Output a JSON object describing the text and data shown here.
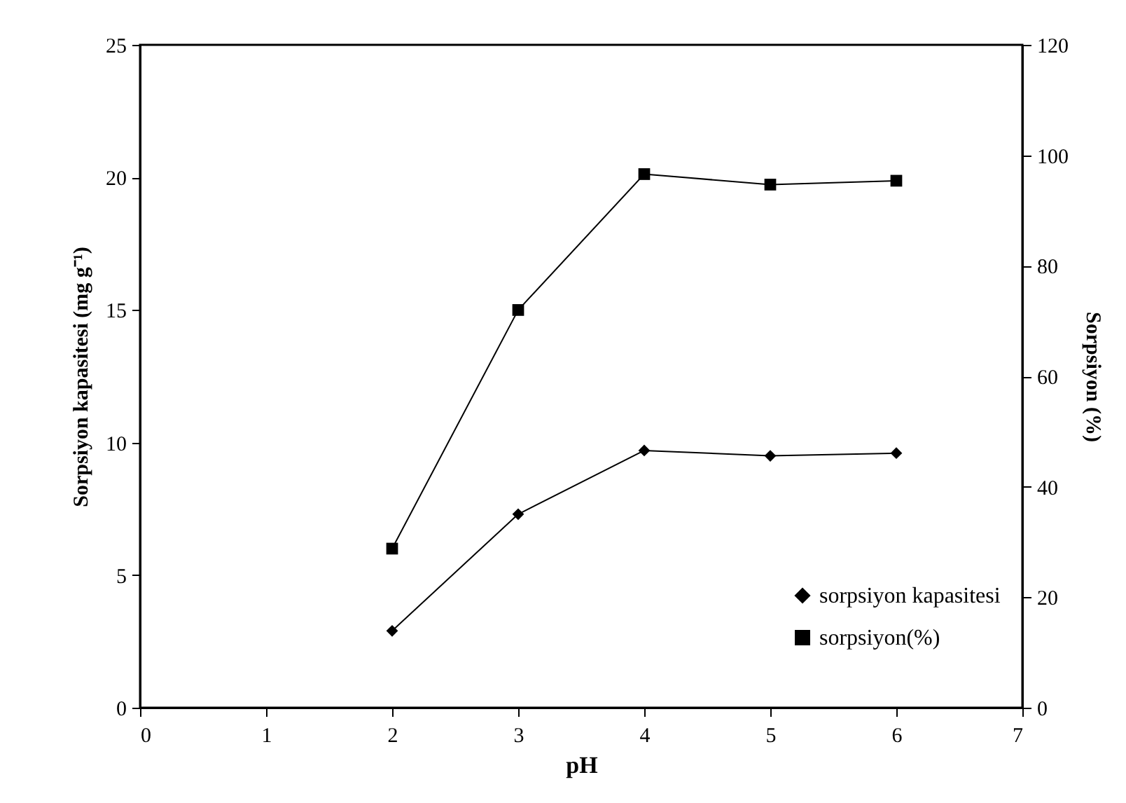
{
  "chart_data": {
    "type": "line",
    "xlabel": "pH",
    "ylabel": "Sorpsiyon kapasitesi (mg g⁻¹)",
    "y2label": "Sorpsiyon (%)",
    "x": [
      2,
      3,
      4,
      5,
      6
    ],
    "series": [
      {
        "name": "sorpsiyon kapasitesi",
        "color": "#000000",
        "marker": "diamond",
        "values": [
          2.9,
          7.3,
          9.7,
          9.5,
          9.6
        ]
      },
      {
        "name": "sorpsiyon(%)",
        "color": "#000000",
        "marker": "square",
        "axis": "y2",
        "values": [
          28.8,
          72,
          96.6,
          94.7,
          95.4
        ]
      }
    ],
    "xlim": [
      0,
      7
    ],
    "xticks": [
      0,
      1,
      2,
      3,
      4,
      5,
      6,
      7
    ],
    "ylim": [
      0,
      25
    ],
    "yticks": [
      0,
      5,
      10,
      15,
      20,
      25
    ],
    "y2lim": [
      0,
      120
    ],
    "y2ticks": [
      0,
      20,
      40,
      60,
      80,
      100,
      120
    ],
    "legend": "bottom right",
    "grid": false
  }
}
